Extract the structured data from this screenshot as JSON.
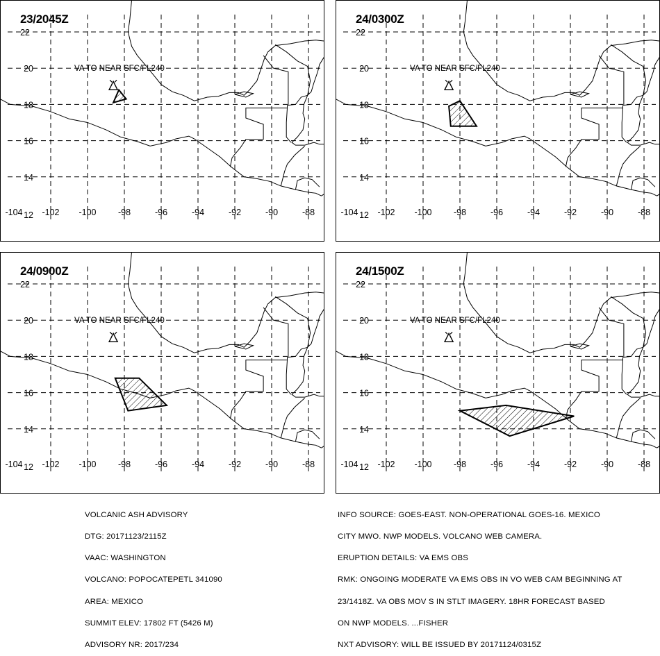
{
  "panels": [
    {
      "time": "23/2045Z",
      "note": "VA TO NEAR SFC/FL240",
      "cloud": [
        [
          -98.3,
          18.8
        ],
        [
          -98.6,
          18.1
        ],
        [
          -97.9,
          18.3
        ]
      ]
    },
    {
      "time": "24/0300Z",
      "note": "VA TO NEAR SFC/FL240",
      "cloud": [
        [
          -98.6,
          17.9
        ],
        [
          -98.0,
          18.2
        ],
        [
          -97.1,
          16.8
        ],
        [
          -98.5,
          16.8
        ]
      ]
    },
    {
      "time": "24/0900Z",
      "note": "VA TO NEAR SFC/FL240",
      "cloud": [
        [
          -98.5,
          16.8
        ],
        [
          -97.2,
          16.8
        ],
        [
          -95.7,
          15.3
        ],
        [
          -97.8,
          15.0
        ]
      ]
    },
    {
      "time": "24/1500Z",
      "note": "VA TO NEAR SFC/FL240",
      "cloud": [
        [
          -98.0,
          15.0
        ],
        [
          -95.5,
          15.3
        ],
        [
          -91.8,
          14.7
        ],
        [
          -95.3,
          13.6
        ]
      ]
    }
  ],
  "lon_labels": [
    "-104",
    "-102",
    "-100",
    "-98",
    "-96",
    "-94",
    "-92",
    "-90",
    "-88"
  ],
  "lat_labels": [
    "12",
    "14",
    "16",
    "18",
    "20",
    "22"
  ],
  "volcano_marker": "volcano-triangle-icon",
  "advisory_left": [
    "VOLCANIC ASH ADVISORY",
    "DTG: 20171123/2115Z",
    "VAAC: WASHINGTON",
    "VOLCANO: POPOCATEPETL 341090",
    "AREA: MEXICO",
    "SUMMIT ELEV: 17802 FT (5426 M)",
    "ADVISORY NR: 2017/234"
  ],
  "advisory_right": [
    "INFO SOURCE: GOES-EAST. NON-OPERATIONAL GOES-16. MEXICO",
    "CITY MWO. NWP MODELS. VOLCANO WEB CAMERA.",
    "ERUPTION DETAILS: VA EMS OBS",
    "RMK: ONGOING MODERATE VA EMS OBS IN VO WEB CAM BEGINNING AT",
    "23/1418Z. VA OBS MOV S IN STLT IMAGERY. 18HR FORECAST BASED",
    "ON NWP MODELS. ...FISHER",
    "NXT ADVISORY: WILL BE ISSUED BY 20171124/0315Z"
  ]
}
